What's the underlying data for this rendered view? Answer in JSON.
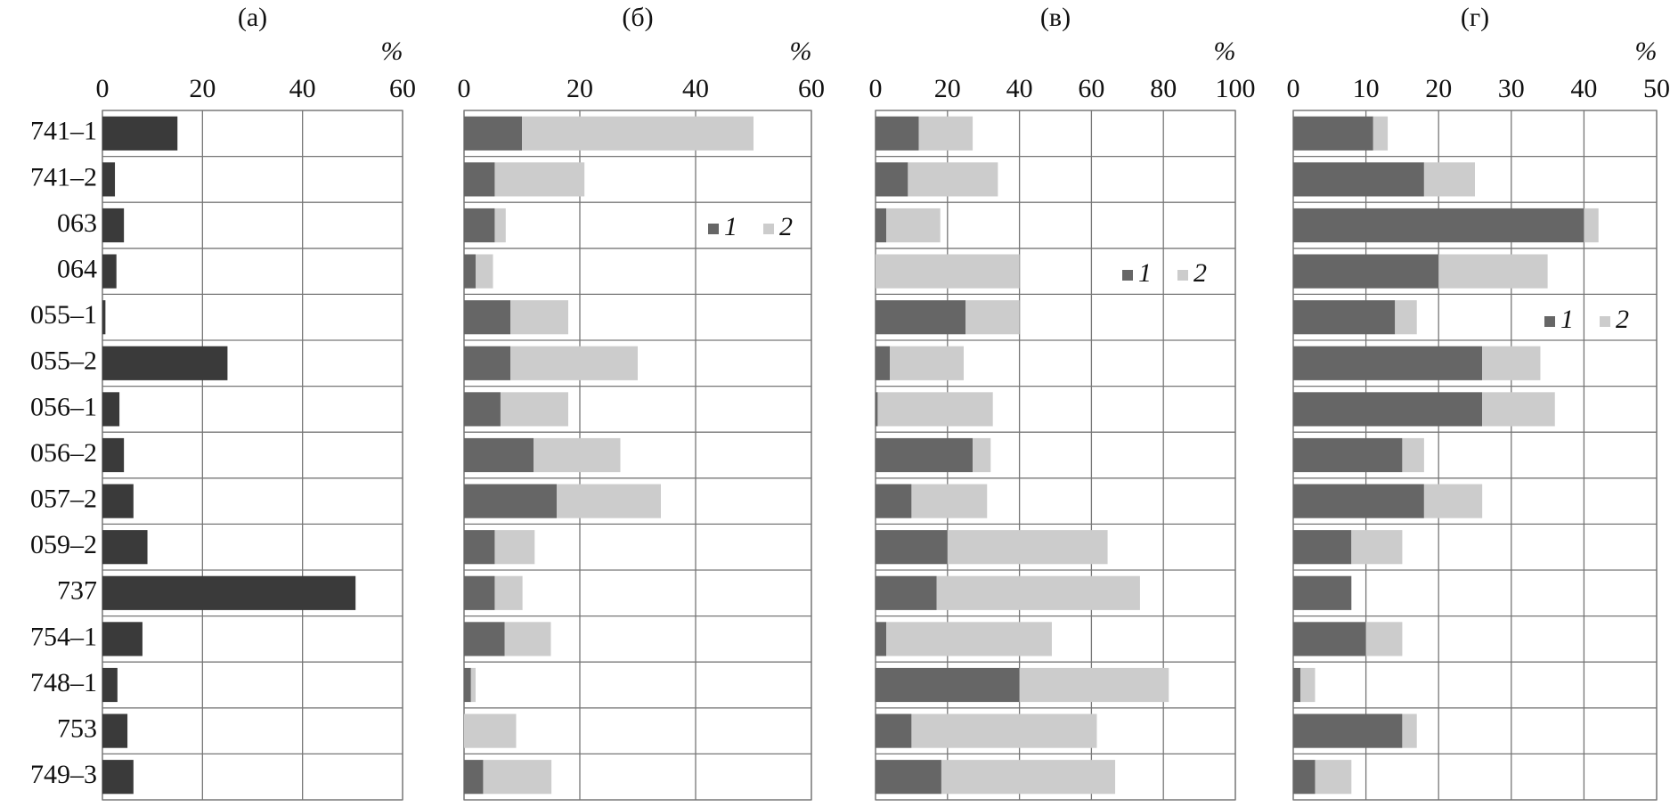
{
  "chart_data": [
    {
      "type": "bar",
      "title": "(а)",
      "unit": "%",
      "categories": [
        "741–1",
        "741–2",
        "063",
        "064",
        "055–1",
        "055–2",
        "056–1",
        "056–2",
        "057–2",
        "059–2",
        "737",
        "754–1",
        "748–1",
        "753",
        "749–3"
      ],
      "values": [
        15,
        2.5,
        4.3,
        2.8,
        0.6,
        25,
        3.4,
        4.3,
        6.2,
        9,
        50.6,
        8,
        3,
        5,
        6.2
      ],
      "color": "#3a3a3a",
      "xlim": [
        0,
        60
      ],
      "xticks": [
        0,
        20,
        40,
        60
      ],
      "grid": true
    },
    {
      "type": "stacked_bar",
      "title": "(б)",
      "unit": "%",
      "series": [
        {
          "name": "1",
          "color": "#666666",
          "values": [
            10,
            5.3,
            5.3,
            2,
            8,
            8,
            6.3,
            12,
            16,
            5.3,
            5.3,
            7,
            1.2,
            0,
            3.3
          ]
        },
        {
          "name": "2",
          "color": "#cccccc",
          "values": [
            40,
            15.5,
            1.9,
            3,
            10,
            22,
            11.7,
            15,
            18,
            6.9,
            4.8,
            8,
            0.8,
            9,
            11.8
          ]
        }
      ],
      "xlim": [
        0,
        60
      ],
      "xticks": [
        0,
        20,
        40,
        60
      ],
      "grid": true
    },
    {
      "type": "stacked_bar",
      "title": "(в)",
      "unit": "%",
      "series": [
        {
          "name": "1",
          "color": "#666666",
          "values": [
            12,
            9,
            3,
            0,
            25,
            4,
            0.6,
            27,
            10,
            20,
            17,
            3,
            40,
            10,
            18.3
          ]
        },
        {
          "name": "2",
          "color": "#cccccc",
          "values": [
            15,
            25,
            15,
            40,
            15,
            20.5,
            32,
            5,
            21,
            44.5,
            56.5,
            46,
            41.5,
            51.5,
            48.3
          ]
        }
      ],
      "xlim": [
        0,
        100
      ],
      "xticks": [
        0,
        20,
        40,
        60,
        80,
        100
      ],
      "grid": true
    },
    {
      "type": "stacked_bar",
      "title": "(г)",
      "unit": "%",
      "series": [
        {
          "name": "1",
          "color": "#666666",
          "values": [
            11,
            18,
            40,
            20,
            14,
            26,
            26,
            15,
            18,
            8,
            8,
            10,
            1,
            15,
            3
          ]
        },
        {
          "name": "2",
          "color": "#cccccc",
          "values": [
            2,
            7,
            2,
            15,
            3,
            8,
            10,
            3,
            8,
            7,
            0,
            5,
            2,
            2,
            5
          ]
        }
      ],
      "xlim": [
        0,
        50
      ],
      "xticks": [
        0,
        10,
        20,
        30,
        40,
        50
      ],
      "grid": true
    }
  ]
}
